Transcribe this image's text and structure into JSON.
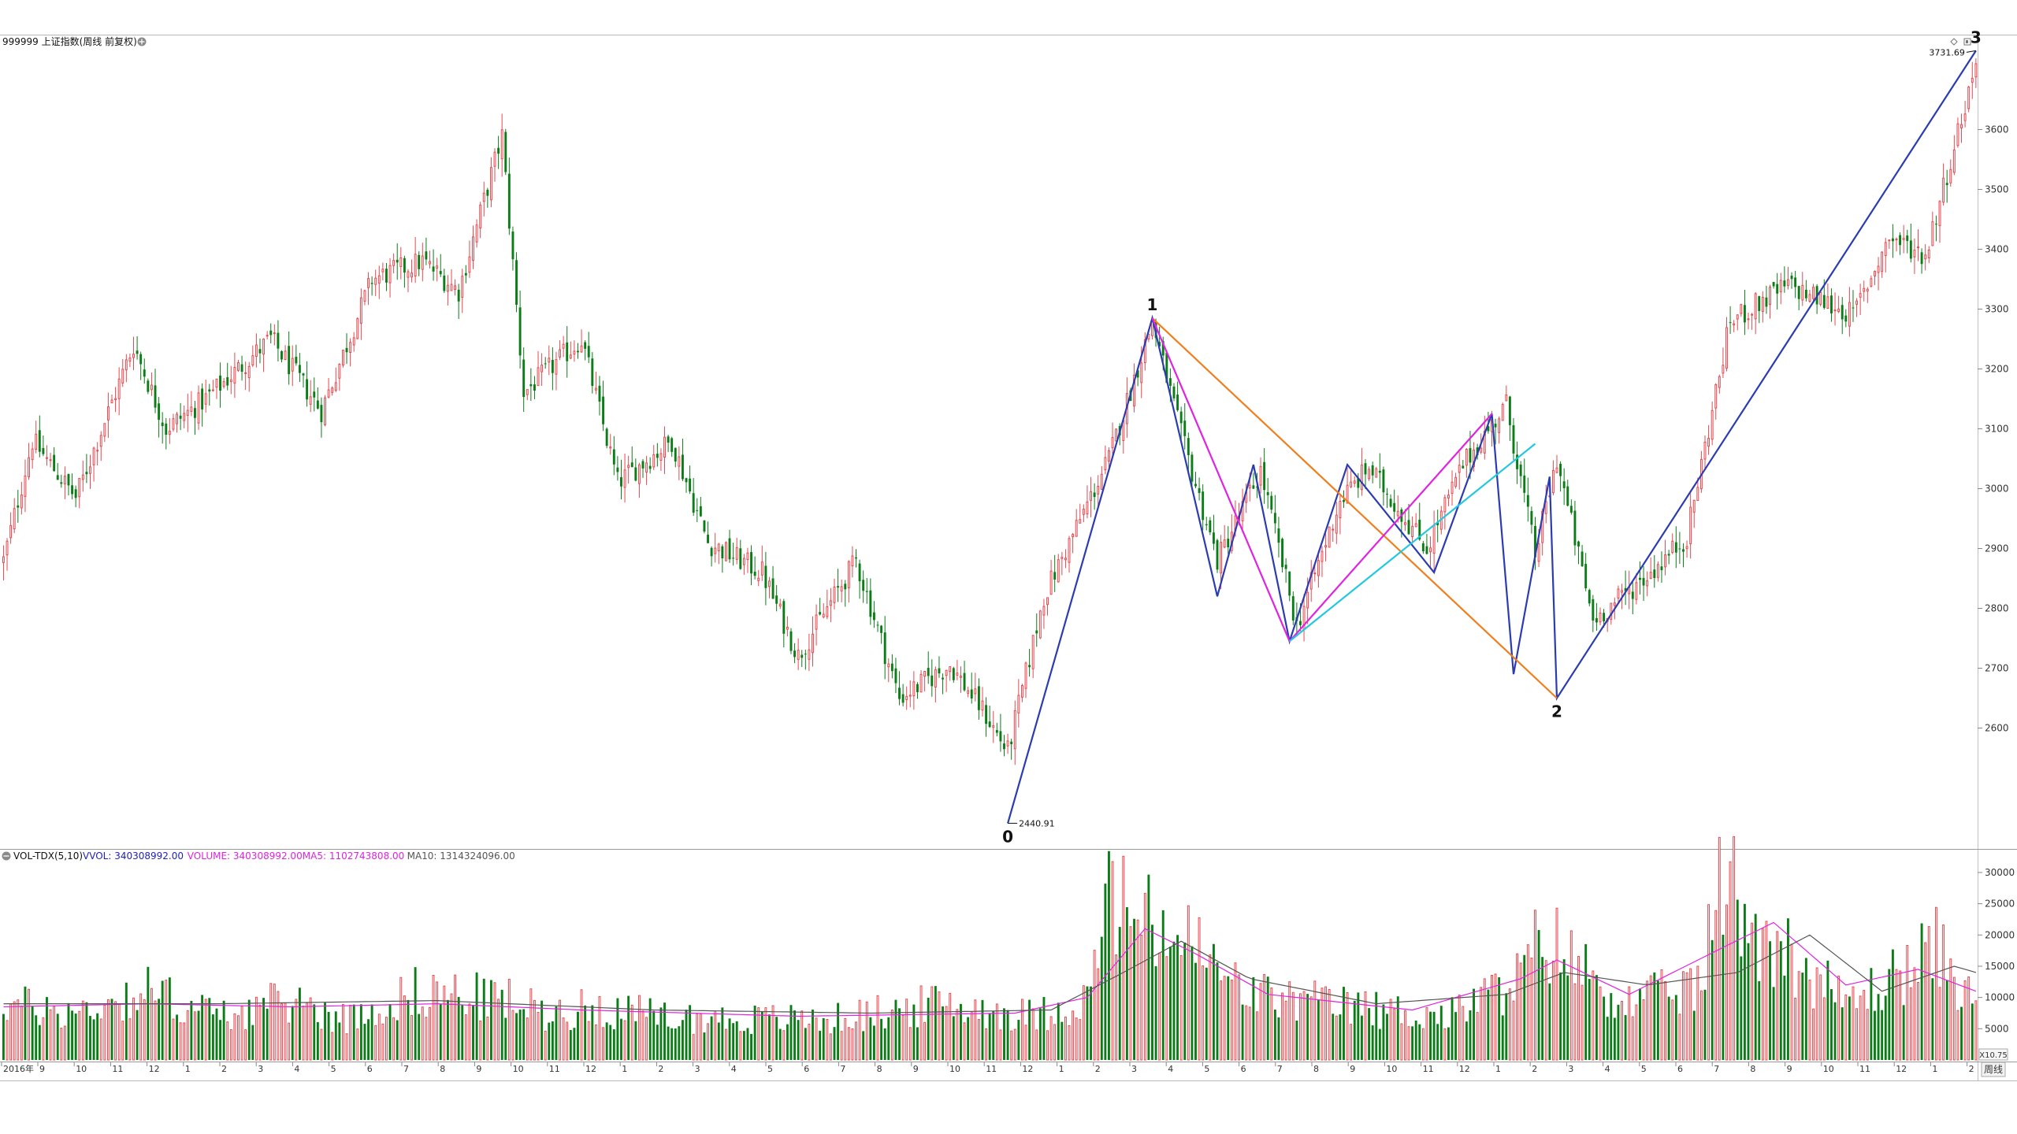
{
  "header": {
    "symbol_title": "999999 上证指数(周线 前复权)",
    "indicator_name": "VOL-TDX(5,10)",
    "indicator_values": [
      {
        "label": "VVOL: 340308992.00",
        "color": "#1f1fbf"
      },
      {
        "label": "VOLUME: 340308992.00",
        "color": "#e023e0"
      },
      {
        "label": "MA5: 1102743808.00",
        "color": "#e023e0"
      },
      {
        "label": "MA10: 1314324096.00",
        "color": "#555555"
      }
    ]
  },
  "footer": {
    "period_button": "周线",
    "zoom_button": "X10.75"
  },
  "colors": {
    "up": "#e8484f",
    "down": "#0a7d16",
    "wave_main": "#2b3cb2",
    "wave_orange": "#f07e1d",
    "wave_magenta": "#e023e0",
    "wave_cyan": "#23c8e0",
    "ma5": "#e023e0",
    "ma10": "#555555"
  },
  "chart_data": [
    {
      "type": "candlestick",
      "title": "999999 上证指数(周线 前复权)",
      "ylim": [
        2420,
        3760
      ],
      "y_ticks": [
        2600,
        2700,
        2800,
        2900,
        3000,
        3100,
        3200,
        3300,
        3400,
        3500,
        3600
      ],
      "x_tick_labels": [
        "2016年",
        "9",
        "10",
        "11",
        "12",
        "1",
        "2",
        "3",
        "4",
        "5",
        "6",
        "7",
        "8",
        "9",
        "10",
        "11",
        "12",
        "1",
        "2",
        "3",
        "4",
        "5",
        "6",
        "7",
        "8",
        "9",
        "10",
        "11",
        "12",
        "1",
        "2",
        "3",
        "4",
        "5",
        "6",
        "7",
        "8",
        "9",
        "10",
        "11",
        "12",
        "1",
        "2",
        "3",
        "4",
        "5",
        "6",
        "7",
        "8",
        "9",
        "10",
        "11",
        "12",
        "1",
        "2"
      ],
      "close_path": [
        [
          0,
          2880
        ],
        [
          8,
          3080
        ],
        [
          20,
          2985
        ],
        [
          36,
          3240
        ],
        [
          45,
          3100
        ],
        [
          56,
          3150
        ],
        [
          74,
          3250
        ],
        [
          88,
          3130
        ],
        [
          102,
          3350
        ],
        [
          116,
          3380
        ],
        [
          126,
          3330
        ],
        [
          138,
          3590
        ],
        [
          144,
          3160
        ],
        [
          160,
          3250
        ],
        [
          170,
          3010
        ],
        [
          185,
          3080
        ],
        [
          195,
          2910
        ],
        [
          210,
          2860
        ],
        [
          220,
          2720
        ],
        [
          236,
          2880
        ],
        [
          248,
          2650
        ],
        [
          262,
          2705
        ],
        [
          271,
          2630
        ],
        [
          278,
          2560
        ],
        [
          288,
          2820
        ],
        [
          306,
          3050
        ],
        [
          318,
          3280
        ],
        [
          326,
          3090
        ],
        [
          336,
          2880
        ],
        [
          348,
          3030
        ],
        [
          358,
          2770
        ],
        [
          370,
          2980
        ],
        [
          378,
          3035
        ],
        [
          394,
          2900
        ],
        [
          404,
          3040
        ],
        [
          416,
          3140
        ],
        [
          424,
          2890
        ],
        [
          430,
          3050
        ],
        [
          440,
          2780
        ],
        [
          456,
          2860
        ],
        [
          466,
          2920
        ],
        [
          478,
          3280
        ],
        [
          494,
          3340
        ],
        [
          512,
          3290
        ],
        [
          522,
          3420
        ],
        [
          532,
          3390
        ],
        [
          546,
          3710
        ]
      ],
      "annotations": [
        {
          "label": "0",
          "x": 278,
          "y": 2440.91
        },
        {
          "label": "1",
          "x": 318,
          "y": 3285
        },
        {
          "label": "2",
          "x": 430,
          "y": 2650
        },
        {
          "label": "3",
          "x": 546,
          "y": 3731.69
        },
        {
          "label": "2440.91",
          "x": 278,
          "y": 2440.91
        },
        {
          "label": "3731.69",
          "x": 546,
          "y": 3731.69
        }
      ],
      "waves": [
        {
          "color": "wave_main",
          "points": [
            [
              278,
              2440.91
            ],
            [
              318,
              3285
            ],
            [
              336,
              2820
            ],
            [
              346,
              3040
            ],
            [
              356,
              2745
            ],
            [
              372,
              3040
            ],
            [
              396,
              2860
            ],
            [
              412,
              3125
            ],
            [
              418,
              2690
            ],
            [
              428,
              3020
            ],
            [
              430,
              2650
            ],
            [
              546,
              3731.69
            ]
          ]
        },
        {
          "color": "wave_orange",
          "points": [
            [
              318,
              3285
            ],
            [
              430,
              2650
            ]
          ]
        },
        {
          "color": "wave_magenta",
          "points": [
            [
              318,
              3285
            ],
            [
              356,
              2745
            ],
            [
              412,
              3125
            ]
          ]
        },
        {
          "color": "wave_cyan",
          "points": [
            [
              356,
              2745
            ],
            [
              424,
              3075
            ]
          ]
        }
      ]
    },
    {
      "type": "bar",
      "title": "VOL-TDX(5,10)",
      "ylim": [
        0,
        31500
      ],
      "y_ticks": [
        5000,
        10000,
        15000,
        20000,
        25000,
        30000
      ],
      "volume_path": [
        [
          0,
          9000
        ],
        [
          20,
          7500
        ],
        [
          40,
          11000
        ],
        [
          60,
          7000
        ],
        [
          80,
          9500
        ],
        [
          95,
          6500
        ],
        [
          115,
          11000
        ],
        [
          140,
          9500
        ],
        [
          150,
          7500
        ],
        [
          165,
          8500
        ],
        [
          180,
          7000
        ],
        [
          200,
          6500
        ],
        [
          230,
          6500
        ],
        [
          260,
          9000
        ],
        [
          285,
          7000
        ],
        [
          300,
          9500
        ],
        [
          306,
          26000
        ],
        [
          315,
          22000
        ],
        [
          330,
          18000
        ],
        [
          340,
          12000
        ],
        [
          350,
          10000
        ],
        [
          380,
          8000
        ],
        [
          400,
          7000
        ],
        [
          420,
          13000
        ],
        [
          426,
          20000
        ],
        [
          440,
          13000
        ],
        [
          450,
          9000
        ],
        [
          470,
          12000
        ],
        [
          476,
          30000
        ],
        [
          484,
          22000
        ],
        [
          500,
          14000
        ],
        [
          510,
          9000
        ],
        [
          520,
          12000
        ],
        [
          536,
          18000
        ],
        [
          546,
          8000
        ]
      ],
      "ma5_path": [
        [
          0,
          8500
        ],
        [
          40,
          9000
        ],
        [
          80,
          8500
        ],
        [
          120,
          9000
        ],
        [
          160,
          8000
        ],
        [
          220,
          7000
        ],
        [
          280,
          7500
        ],
        [
          300,
          10000
        ],
        [
          316,
          21000
        ],
        [
          330,
          17000
        ],
        [
          350,
          10500
        ],
        [
          390,
          8000
        ],
        [
          420,
          13000
        ],
        [
          430,
          16000
        ],
        [
          450,
          10500
        ],
        [
          476,
          18000
        ],
        [
          490,
          22000
        ],
        [
          510,
          12000
        ],
        [
          530,
          14500
        ],
        [
          546,
          11000
        ]
      ],
      "ma10_path": [
        [
          0,
          9000
        ],
        [
          60,
          9000
        ],
        [
          120,
          9500
        ],
        [
          180,
          8000
        ],
        [
          240,
          7500
        ],
        [
          290,
          8000
        ],
        [
          310,
          14000
        ],
        [
          326,
          19000
        ],
        [
          345,
          13000
        ],
        [
          380,
          9000
        ],
        [
          416,
          10500
        ],
        [
          432,
          14000
        ],
        [
          455,
          12000
        ],
        [
          480,
          14000
        ],
        [
          500,
          20000
        ],
        [
          520,
          11000
        ],
        [
          540,
          15000
        ],
        [
          546,
          14000
        ]
      ]
    }
  ]
}
